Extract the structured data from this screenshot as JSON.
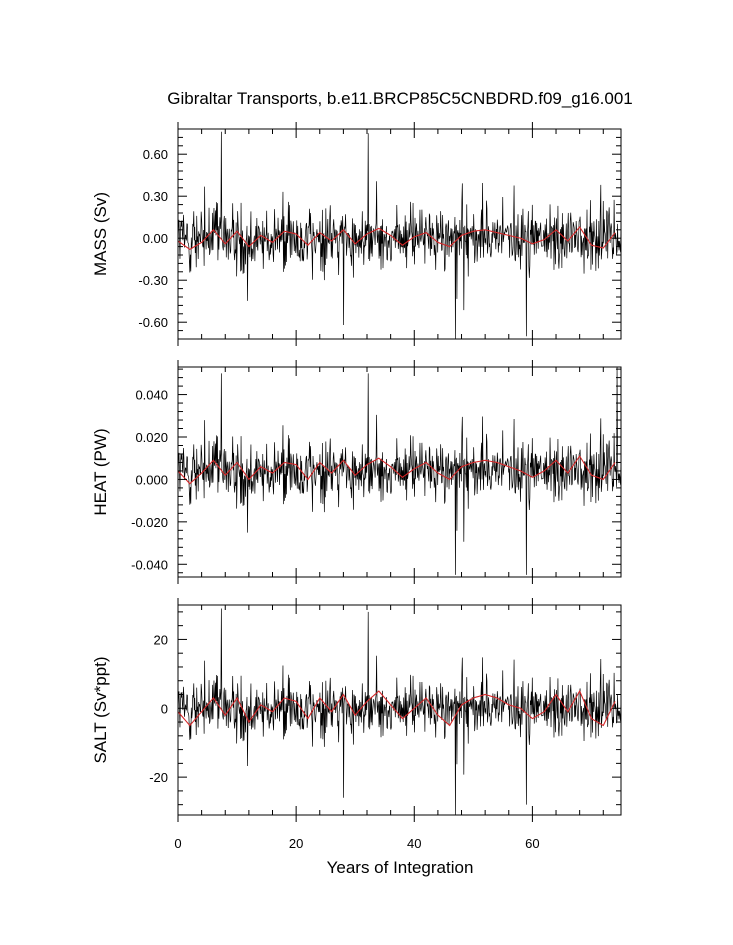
{
  "title": "Gibraltar Transports, b.e11.BRCP85C5CNBDRD.f09_g16.001",
  "xlabel": "Years of Integration",
  "chart_data": [
    {
      "type": "line",
      "ylabel": "MASS (Sv)",
      "xlim": [
        0,
        75
      ],
      "ylim": [
        -0.72,
        0.78
      ],
      "yticks": [
        0.6,
        0.3,
        0.0,
        -0.3,
        -0.6
      ],
      "ytick_labels": [
        "0.60",
        "0.30",
        "0.00",
        "-0.30",
        "-0.60"
      ],
      "xticks": [
        0,
        20,
        40,
        60
      ],
      "xtick_labels": [],
      "series": [
        {
          "role": "monthly",
          "color": "#000000",
          "amplitude": 0.2,
          "offset": 0.0,
          "spikes": [
            [
              7.3,
              0.76
            ],
            [
              32.2,
              0.75
            ],
            [
              47.0,
              -0.72
            ],
            [
              28.0,
              -0.62
            ],
            [
              59.0,
              -0.7
            ]
          ]
        },
        {
          "role": "annual-mean",
          "color": "#d62728",
          "amplitude": 0.06,
          "offset": 0.0,
          "x": [
            0,
            2,
            4,
            6,
            8,
            10,
            12,
            14,
            16,
            18,
            20,
            22,
            24,
            26,
            28,
            30,
            32,
            34,
            36,
            38,
            40,
            42,
            44,
            46,
            48,
            50,
            52,
            54,
            56,
            58,
            60,
            62,
            64,
            66,
            68,
            70,
            72,
            74
          ],
          "y": [
            -0.02,
            -0.08,
            -0.03,
            0.06,
            -0.04,
            0.05,
            -0.06,
            0.02,
            -0.03,
            0.05,
            0.03,
            -0.05,
            0.04,
            -0.02,
            0.06,
            -0.04,
            0.03,
            0.07,
            0.02,
            -0.05,
            0.01,
            0.04,
            -0.03,
            -0.06,
            0.02,
            0.05,
            0.06,
            0.04,
            0.02,
            0.0,
            -0.04,
            -0.01,
            0.06,
            -0.02,
            0.08,
            -0.05,
            -0.07,
            0.04
          ]
        }
      ]
    },
    {
      "type": "line",
      "ylabel": "HEAT (PW)",
      "xlim": [
        0,
        75
      ],
      "ylim": [
        -0.046,
        0.053
      ],
      "yticks": [
        0.04,
        0.02,
        0.0,
        -0.02,
        -0.04
      ],
      "ytick_labels": [
        "0.040",
        "0.020",
        "0.000",
        "-0.020",
        "-0.040"
      ],
      "xticks": [
        0,
        20,
        40,
        60
      ],
      "xtick_labels": [],
      "series": [
        {
          "role": "monthly",
          "color": "#000000",
          "amplitude": 0.013,
          "offset": 0.004,
          "spikes": [
            [
              7.3,
              0.05
            ],
            [
              32.2,
              0.05
            ],
            [
              47.0,
              -0.045
            ],
            [
              59.0,
              -0.045
            ],
            [
              74.3,
              0.053
            ]
          ]
        },
        {
          "role": "annual-mean",
          "color": "#d62728",
          "amplitude": 0.004,
          "offset": 0.004,
          "x": [
            0,
            2,
            4,
            6,
            8,
            10,
            12,
            14,
            16,
            18,
            20,
            22,
            24,
            26,
            28,
            30,
            32,
            34,
            36,
            38,
            40,
            42,
            44,
            46,
            48,
            50,
            52,
            54,
            56,
            58,
            60,
            62,
            64,
            66,
            68,
            70,
            72,
            74
          ],
          "y": [
            0.004,
            -0.002,
            0.003,
            0.009,
            0.002,
            0.008,
            0.0,
            0.006,
            0.003,
            0.008,
            0.007,
            0.0,
            0.008,
            0.003,
            0.009,
            0.002,
            0.007,
            0.01,
            0.006,
            0.001,
            0.005,
            0.008,
            0.003,
            0.0,
            0.006,
            0.008,
            0.009,
            0.008,
            0.006,
            0.004,
            0.001,
            0.004,
            0.009,
            0.003,
            0.011,
            0.002,
            0.0,
            0.008
          ]
        }
      ]
    },
    {
      "type": "line",
      "ylabel": "SALT (Sv*ppt)",
      "xlim": [
        0,
        75
      ],
      "ylim": [
        -31,
        30
      ],
      "yticks": [
        20,
        0,
        -20
      ],
      "ytick_labels": [
        "20",
        "0",
        "-20"
      ],
      "xticks": [
        0,
        20,
        40,
        60
      ],
      "xtick_labels": [
        "0",
        "20",
        "40",
        "60"
      ],
      "series": [
        {
          "role": "monthly",
          "color": "#000000",
          "amplitude": 7.5,
          "offset": 0.0,
          "spikes": [
            [
              7.3,
              29
            ],
            [
              32.2,
              28
            ],
            [
              47.0,
              -31
            ],
            [
              59.0,
              -28
            ],
            [
              28.0,
              -26
            ]
          ]
        },
        {
          "role": "annual-mean",
          "color": "#d62728",
          "amplitude": 2.2,
          "offset": 0.0,
          "x": [
            0,
            2,
            4,
            6,
            8,
            10,
            12,
            14,
            16,
            18,
            20,
            22,
            24,
            26,
            28,
            30,
            32,
            34,
            36,
            38,
            40,
            42,
            44,
            46,
            48,
            50,
            52,
            54,
            56,
            58,
            60,
            62,
            64,
            66,
            68,
            70,
            72,
            74
          ],
          "y": [
            -1,
            -5,
            -1,
            3,
            -2,
            3,
            -4,
            1,
            -1,
            3,
            2,
            -3,
            3,
            -1,
            4,
            -2,
            2,
            5,
            1,
            -3,
            0,
            3,
            -2,
            -5,
            1,
            3,
            4,
            3,
            1,
            0,
            -3,
            -1,
            4,
            -1,
            5,
            -3,
            -5,
            2
          ]
        }
      ]
    }
  ]
}
